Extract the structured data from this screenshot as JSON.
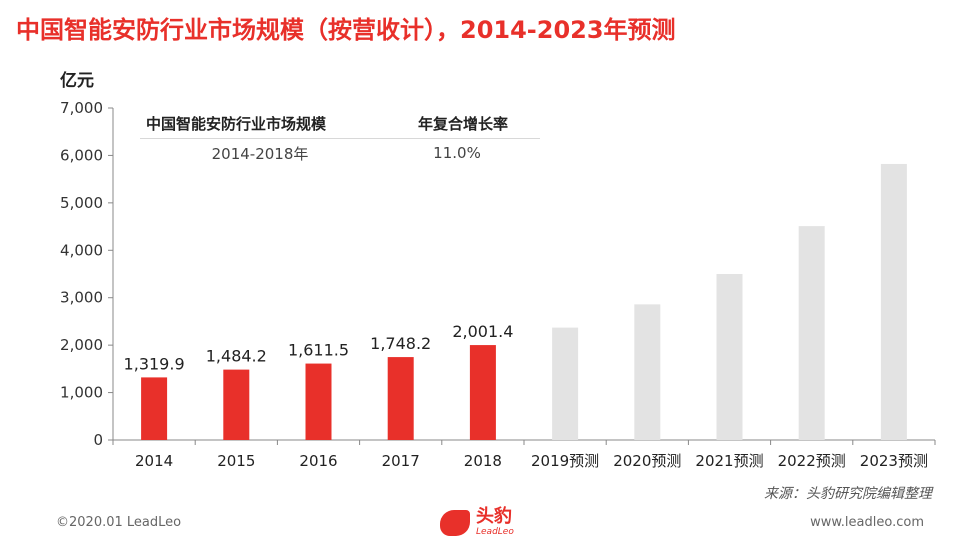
{
  "header": {
    "title": "中国智能安防行业市场规模（按营收计），2014-2023年预测"
  },
  "chart_data": {
    "type": "bar",
    "unit_label": "亿元",
    "categories": [
      "2014",
      "2015",
      "2016",
      "2017",
      "2018",
      "2019预测",
      "2020预测",
      "2021预测",
      "2022预测",
      "2023预测"
    ],
    "values": [
      1319.9,
      1484.2,
      1611.5,
      1748.2,
      2001.4,
      2370,
      2860,
      3500,
      4510,
      5820
    ],
    "value_labels": [
      "1,319.9",
      "1,484.2",
      "1,611.5",
      "1,748.2",
      "2,001.4",
      "",
      "",
      "",
      "",
      ""
    ],
    "y_ticks": [
      "0",
      "1,000",
      "2,000",
      "3,000",
      "4,000",
      "5,000",
      "6,000",
      "7,000"
    ],
    "ylim": [
      0,
      7000
    ],
    "colors": {
      "actual": "#e8302a",
      "forecast": "#e3e3e3"
    },
    "grid": false
  },
  "table": {
    "header": [
      "中国智能安防行业市场规模",
      "年复合增长率"
    ],
    "row": [
      "2014-2018年",
      "11.0%"
    ]
  },
  "footer": {
    "source": "来源：头豹研究院编辑整理",
    "copyright": "©2020.01 LeadLeo",
    "website": "www.leadleo.com",
    "logo_cn": "头豹",
    "logo_en": "LeadLeo"
  }
}
